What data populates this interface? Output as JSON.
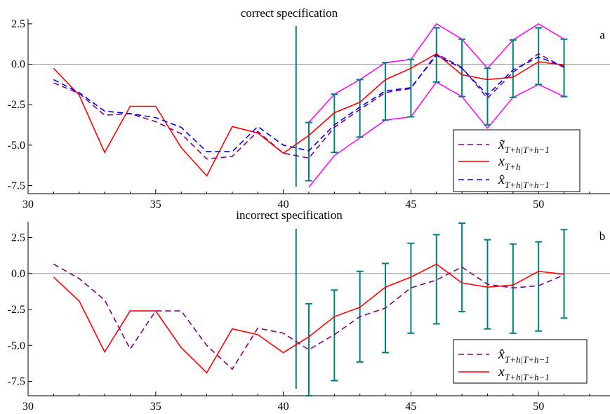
{
  "chart_data": [
    {
      "type": "line",
      "title": "correct specification",
      "panel_label": "a",
      "xlim": [
        30,
        52.8
      ],
      "ylim": [
        -8,
        2.8
      ],
      "xticks": [
        30,
        35,
        40,
        45,
        50
      ],
      "yticks": [
        2.5,
        0.0,
        -2.5,
        -5.0,
        -7.5
      ],
      "xtick_labels": [
        "30",
        "35",
        "40",
        "45",
        "50"
      ],
      "ytick_labels": [
        "2.5",
        "0.0",
        "-2.5",
        "-5.0",
        "-7.5"
      ],
      "hline_y": 0,
      "vline_x": 40.5,
      "series": [
        {
          "name": "x̃T+h|T+h−1",
          "legend_main": "x̃",
          "legend_sub": "T+h|T+h−1",
          "color": "#800080",
          "dash": "8,5",
          "x": [
            31,
            32,
            33,
            34,
            35,
            36,
            37,
            38,
            39,
            40,
            41,
            42,
            43,
            44,
            45,
            46,
            47,
            48,
            49,
            50,
            51
          ],
          "values": [
            -1.15,
            -1.8,
            -3.15,
            -3.05,
            -3.55,
            -4.3,
            -5.85,
            -5.7,
            -4.15,
            -5.5,
            -5.8,
            -3.9,
            -2.8,
            -1.75,
            -1.5,
            0.65,
            -0.2,
            -2.1,
            -0.5,
            0.65,
            -0.2
          ]
        },
        {
          "name": "xT+h",
          "legend_main": "x",
          "legend_sub": "T+h",
          "color": "#ff0000",
          "dash": "",
          "x": [
            31,
            32,
            33,
            34,
            35,
            36,
            37,
            38,
            39,
            40,
            41,
            42,
            43,
            44,
            45,
            46,
            47,
            48,
            49,
            50,
            51
          ],
          "values": [
            -0.25,
            -1.9,
            -5.45,
            -2.6,
            -2.6,
            -5.15,
            -6.9,
            -3.85,
            -4.25,
            -5.5,
            -4.4,
            -3.0,
            -2.35,
            -0.95,
            -0.25,
            0.65,
            -0.65,
            -0.95,
            -0.8,
            0.15,
            -0.05
          ]
        },
        {
          "name": "x̂T+h|T+h−1",
          "legend_main": "x̂",
          "legend_sub": "T+h|T+h−1",
          "color": "#0000ff",
          "dash": "8,5",
          "x": [
            31,
            32,
            33,
            34,
            35,
            36,
            37,
            38,
            39,
            40,
            41,
            42,
            43,
            44,
            45,
            46,
            47,
            48,
            49,
            50,
            51
          ],
          "values": [
            -0.95,
            -1.75,
            -2.9,
            -3.05,
            -3.3,
            -3.9,
            -5.4,
            -5.4,
            -3.85,
            -5.0,
            -5.35,
            -3.75,
            -2.65,
            -1.65,
            -1.45,
            0.55,
            -0.25,
            -1.9,
            -0.35,
            0.45,
            -0.15
          ]
        }
      ],
      "bands": {
        "color": "#ff00ff",
        "x": [
          41,
          42,
          43,
          44,
          45,
          46,
          47,
          48,
          49,
          50,
          51
        ],
        "upper": [
          -3.6,
          -1.85,
          -0.95,
          0.1,
          0.3,
          2.5,
          1.55,
          -0.25,
          1.5,
          2.5,
          1.55
        ],
        "lower": [
          -7.6,
          -5.65,
          -4.55,
          -3.45,
          -3.25,
          -1.1,
          -2.0,
          -3.95,
          -2.05,
          -1.25,
          -2.0
        ]
      },
      "error_bars": {
        "color": "#008080",
        "x": [
          41,
          42,
          43,
          44,
          45,
          46,
          47,
          48,
          49,
          50,
          51
        ],
        "upper": [
          -3.6,
          -1.85,
          -0.95,
          0.1,
          0.3,
          2.25,
          1.55,
          -0.25,
          1.5,
          2.25,
          1.55
        ],
        "lower": [
          -7.2,
          -5.45,
          -4.5,
          -3.45,
          -3.25,
          -1.1,
          -2.0,
          -3.75,
          -2.05,
          -1.25,
          -2.0
        ]
      },
      "legend_position": "bottom-right"
    },
    {
      "type": "line",
      "title": "incorrect specification",
      "panel_label": "b",
      "xlim": [
        30,
        52.8
      ],
      "ylim": [
        -8.5,
        3.6
      ],
      "xticks": [
        30,
        35,
        40,
        45,
        50
      ],
      "yticks": [
        2.5,
        0.0,
        -2.5,
        -5.0,
        -7.5
      ],
      "xtick_labels": [
        "30",
        "35",
        "40",
        "45",
        "50"
      ],
      "ytick_labels": [
        "2.5",
        "0.0",
        "-2.5",
        "-5.0",
        "-7.5"
      ],
      "hline_y": 0,
      "vline_x": 40.5,
      "series": [
        {
          "name": "x̂T+h|T+h−1",
          "legend_main": "x̂",
          "legend_sub": "T+h|T+h−1",
          "color": "#800080",
          "dash": "8,5",
          "x": [
            31,
            32,
            33,
            34,
            35,
            36,
            37,
            38,
            39,
            40,
            41,
            42,
            43,
            44,
            45,
            46,
            47,
            48,
            49,
            50,
            51
          ],
          "values": [
            0.65,
            -0.35,
            -1.85,
            -5.25,
            -2.6,
            -2.6,
            -5.0,
            -6.65,
            -3.8,
            -4.15,
            -5.3,
            -4.25,
            -3.0,
            -2.4,
            -1.0,
            -0.45,
            0.45,
            -0.75,
            -1.0,
            -0.85,
            -0.1
          ]
        },
        {
          "name": "xT+h|T+h−1",
          "legend_main": "x",
          "legend_sub": "T+h|T+h−1",
          "color": "#ff0000",
          "dash": "",
          "x": [
            31,
            32,
            33,
            34,
            35,
            36,
            37,
            38,
            39,
            40,
            41,
            42,
            43,
            44,
            45,
            46,
            47,
            48,
            49,
            50,
            51
          ],
          "values": [
            -0.25,
            -1.9,
            -5.45,
            -2.6,
            -2.6,
            -5.15,
            -6.9,
            -3.85,
            -4.25,
            -5.5,
            -4.4,
            -3.0,
            -2.35,
            -0.95,
            -0.25,
            0.65,
            -0.65,
            -0.95,
            -0.8,
            0.15,
            -0.05
          ]
        }
      ],
      "error_bars": {
        "color": "#008080",
        "x": [
          41,
          42,
          43,
          44,
          45,
          46,
          47,
          48,
          49,
          50,
          51
        ],
        "upper": [
          -2.1,
          -1.15,
          0.15,
          0.7,
          2.1,
          2.7,
          3.5,
          2.35,
          2.05,
          2.2,
          3.05
        ],
        "lower": [
          -8.5,
          -7.45,
          -6.15,
          -5.5,
          -4.15,
          -3.5,
          -2.65,
          -3.85,
          -4.15,
          -4.0,
          -3.1
        ]
      },
      "legend_position": "bottom-right"
    }
  ]
}
